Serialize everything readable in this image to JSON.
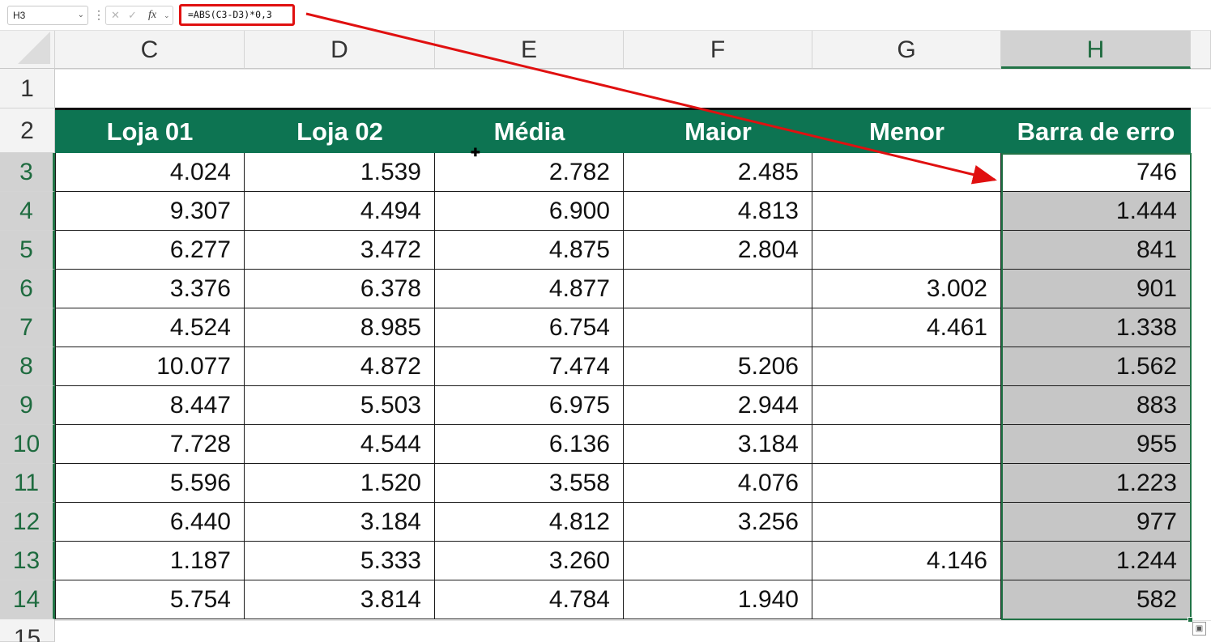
{
  "formula_bar": {
    "name_box": "H3",
    "more_icon": "⋮",
    "cancel_icon": "✕",
    "enter_icon": "✓",
    "fx_label": "fx",
    "formula": "=ABS(C3-D3)*0,3"
  },
  "columns": [
    "C",
    "D",
    "E",
    "F",
    "G",
    "H"
  ],
  "selected_column": "H",
  "rows": [
    "1",
    "2",
    "3",
    "4",
    "5",
    "6",
    "7",
    "8",
    "9",
    "10",
    "11",
    "12",
    "13",
    "14",
    "15"
  ],
  "selected_rows": [
    "3",
    "4",
    "5",
    "6",
    "7",
    "8",
    "9",
    "10",
    "11",
    "12",
    "13",
    "14"
  ],
  "table": {
    "headers": [
      "Loja 01",
      "Loja 02",
      "Média",
      "Maior",
      "Menor",
      "Barra de erro"
    ],
    "header_color": "#0d7452",
    "rows": [
      [
        "4.024",
        "1.539",
        "2.782",
        "2.485",
        "",
        "746"
      ],
      [
        "9.307",
        "4.494",
        "6.900",
        "4.813",
        "",
        "1.444"
      ],
      [
        "6.277",
        "3.472",
        "4.875",
        "2.804",
        "",
        "841"
      ],
      [
        "3.376",
        "6.378",
        "4.877",
        "",
        "3.002",
        "901"
      ],
      [
        "4.524",
        "8.985",
        "6.754",
        "",
        "4.461",
        "1.338"
      ],
      [
        "10.077",
        "4.872",
        "7.474",
        "5.206",
        "",
        "1.562"
      ],
      [
        "8.447",
        "5.503",
        "6.975",
        "2.944",
        "",
        "883"
      ],
      [
        "7.728",
        "4.544",
        "6.136",
        "3.184",
        "",
        "955"
      ],
      [
        "5.596",
        "1.520",
        "3.558",
        "4.076",
        "",
        "1.223"
      ],
      [
        "6.440",
        "3.184",
        "4.812",
        "3.256",
        "",
        "977"
      ],
      [
        "1.187",
        "5.333",
        "3.260",
        "",
        "4.146",
        "1.244"
      ],
      [
        "5.754",
        "3.814",
        "4.784",
        "1.940",
        "",
        "582"
      ]
    ]
  },
  "annotation": {
    "formula_highlight_color": "#e01010",
    "arrow_color": "#e01010"
  },
  "quick_analysis_icon": "quick-analysis-icon"
}
